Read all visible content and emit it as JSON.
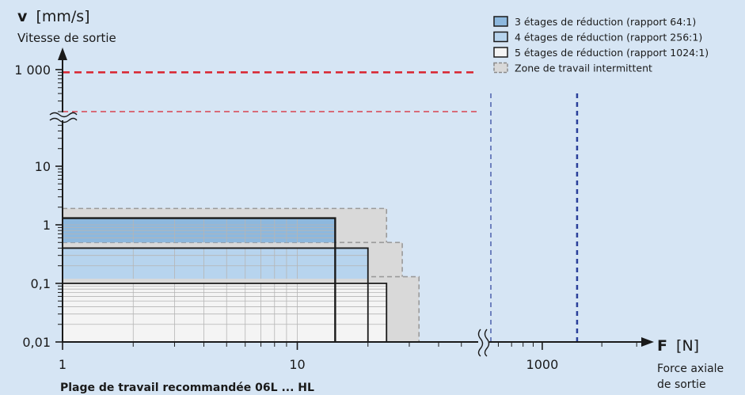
{
  "chart_data": {
    "type": "area",
    "title": "",
    "footer_title": "Plage de travail recommandée 06L ... HL",
    "y_axis": {
      "symbol": "v",
      "unit": "[mm/s]",
      "label": "Vitesse de sortie",
      "scale": "log",
      "ylim": [
        0.01,
        1000
      ],
      "tick_labels": [
        "1 000",
        "10",
        "1",
        "0,1",
        "0,01"
      ],
      "tick_values": [
        1000,
        10,
        1,
        0.1,
        0.01
      ],
      "axis_break": true
    },
    "x_axis": {
      "symbol": "F",
      "unit": "[N]",
      "label_line1": "Force axiale",
      "label_line2": "de sortie",
      "scale": "log",
      "tick_labels": [
        "1",
        "10",
        "1000"
      ],
      "tick_values": [
        1,
        10,
        1000
      ],
      "axis_break": true
    },
    "legend": {
      "placement": "top-right",
      "items": [
        {
          "label": "3 étages de réduction (rapport 64:1)",
          "color": "#8db8de",
          "style": "solid-fill"
        },
        {
          "label": "4 étages de réduction (rapport 256:1)",
          "color": "#b7d4ee",
          "style": "solid-fill"
        },
        {
          "label": "5 étages de réduction (rapport 1024:1)",
          "color": "#f4f4f4",
          "style": "solid-outline"
        },
        {
          "label": "Zone de travail intermittent",
          "color": "#d9d9d9",
          "style": "dashed-grey"
        }
      ]
    },
    "series": [
      {
        "name": "3 étages de réduction (rapport 64:1)",
        "force_max_N": 14.5,
        "speed_max_mm_s": 1.3,
        "speed_min_mm_s": 0.5,
        "intermittent_force_max_N": 24,
        "intermittent_speed_max_mm_s": 1.9
      },
      {
        "name": "4 étages de réduction (rapport 256:1)",
        "force_max_N": 20,
        "speed_max_mm_s": 0.4,
        "speed_min_mm_s": 0.12,
        "intermittent_force_max_N": 28,
        "intermittent_speed_max_mm_s": 0.5
      },
      {
        "name": "5 étages de réduction (rapport 1024:1)",
        "force_max_N": 24,
        "speed_max_mm_s": 0.1,
        "speed_min_mm_s": 0.01,
        "intermittent_force_max_N": 33,
        "intermittent_speed_max_mm_s": 0.13
      }
    ],
    "reference_lines": [
      {
        "orientation": "horizontal",
        "y": 900,
        "color": "#d9232e",
        "style": "dashed-bold"
      },
      {
        "orientation": "horizontal",
        "y": 200,
        "color": "#d9232e",
        "style": "dashed-thin"
      },
      {
        "orientation": "vertical",
        "x": 550,
        "color": "#2a3f9a",
        "style": "dashed-thin"
      },
      {
        "orientation": "vertical",
        "x": 1500,
        "color": "#2a3f9a",
        "style": "dashed-bold"
      }
    ],
    "grid": true,
    "colors": {
      "background": "#d6e5f4",
      "axis": "#1a1a1a",
      "grid": "#b5b5b5"
    }
  }
}
